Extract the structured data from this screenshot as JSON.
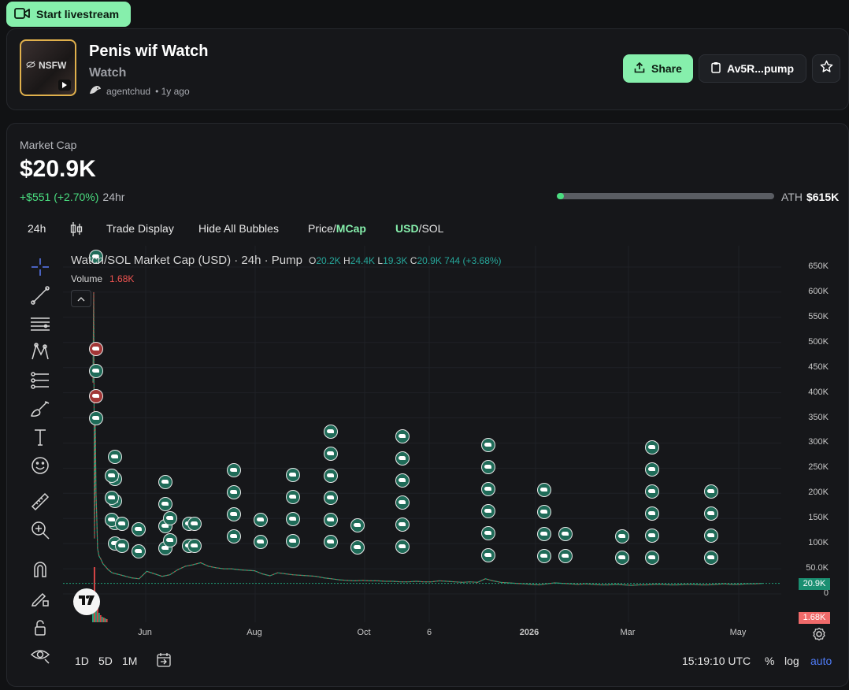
{
  "livestream": {
    "label": "Start livestream"
  },
  "token": {
    "thumb_label": "NSFW",
    "name": "Penis wif Watch",
    "ticker": "Watch",
    "creator": "agentchud",
    "age": "• 1y ago"
  },
  "actions": {
    "share_label": "Share",
    "address_label": "Av5R...pump"
  },
  "market": {
    "label": "Market Cap",
    "value": "$20.9K",
    "change": "+$551 (+2.70%)",
    "period": "24hr",
    "ath_label": "ATH",
    "ath_value": "$615K",
    "ath_progress": 0.034
  },
  "toolbar": {
    "interval": "24h",
    "trade_display": "Trade Display",
    "hide_bubbles": "Hide All Bubbles",
    "price": "Price",
    "mcap": "MCap",
    "usd": "USD",
    "sol": "SOL",
    "slash": "/"
  },
  "chart_header": {
    "title": "Watch/SOL Market Cap (USD) · 24h · Pump",
    "o_label": "O",
    "o_value": "20.2K",
    "h_label": "H",
    "h_value": "24.4K",
    "l_label": "L",
    "l_value": "19.3K",
    "c_label": "C",
    "c_value": "20.9K",
    "change": "744 (+3.68%)",
    "volume_label": "Volume",
    "volume_value": "1.68K"
  },
  "chart_data": {
    "type": "line",
    "ylim": [
      0,
      650000
    ],
    "y_ticks": [
      "650K",
      "600K",
      "550K",
      "500K",
      "450K",
      "400K",
      "350K",
      "300K",
      "250K",
      "200K",
      "150K",
      "100K",
      "50.0K",
      "0"
    ],
    "x_ticks": [
      "Jun",
      "Aug",
      "Oct",
      "6",
      "2026",
      "Mar",
      "May"
    ],
    "last_price_label": "20.9K",
    "last_volume_label": "1.68K",
    "x": [
      0,
      1,
      2,
      3,
      4,
      5,
      6,
      8,
      10,
      13,
      16,
      20,
      25,
      30,
      35,
      40,
      45,
      50,
      60,
      70,
      80,
      90,
      100,
      110,
      120,
      130,
      140,
      150,
      160,
      170,
      180,
      190,
      200,
      210,
      220,
      230,
      240,
      250,
      260,
      270,
      280,
      290,
      300,
      310,
      320,
      330,
      340,
      350,
      360,
      370,
      380,
      390,
      400,
      410,
      420,
      430,
      440,
      450,
      460,
      470,
      480,
      490,
      500,
      510,
      520,
      530,
      540,
      550,
      560,
      570,
      580,
      590,
      600,
      610,
      620,
      630,
      640,
      650,
      660,
      670,
      680,
      690,
      700,
      710,
      720,
      730,
      740,
      750,
      760,
      770,
      780,
      790,
      800,
      810,
      820,
      830,
      840,
      850,
      860,
      870
    ],
    "values": [
      420000,
      600000,
      110000,
      350000,
      200000,
      150000,
      90000,
      75000,
      70000,
      60000,
      55000,
      48000,
      42000,
      40000,
      38000,
      36000,
      34000,
      32000,
      30000,
      45000,
      40000,
      35000,
      38000,
      48000,
      55000,
      58000,
      62000,
      55000,
      52000,
      50000,
      50000,
      48000,
      47000,
      46000,
      40000,
      36000,
      42000,
      40000,
      38000,
      37000,
      36000,
      35000,
      32000,
      30000,
      28000,
      27000,
      26000,
      27000,
      26000,
      26000,
      25000,
      25000,
      24000,
      24000,
      25000,
      24000,
      24000,
      26000,
      25000,
      24000,
      23000,
      24000,
      23000,
      30000,
      26000,
      23000,
      22000,
      21000,
      20000,
      19000,
      18000,
      20000,
      22000,
      21000,
      20000,
      19000,
      20000,
      19000,
      18000,
      18000,
      19000,
      18000,
      17000,
      18000,
      18000,
      19000,
      19000,
      18000,
      18000,
      19000,
      19000,
      18000,
      18000,
      19000,
      20000,
      19000,
      19000,
      20000,
      20000,
      20900
    ]
  },
  "bottom": {
    "range_1d": "1D",
    "range_5d": "5D",
    "range_1m": "1M",
    "time": "15:19:10 UTC",
    "percent": "%",
    "log": "log",
    "auto": "auto"
  }
}
